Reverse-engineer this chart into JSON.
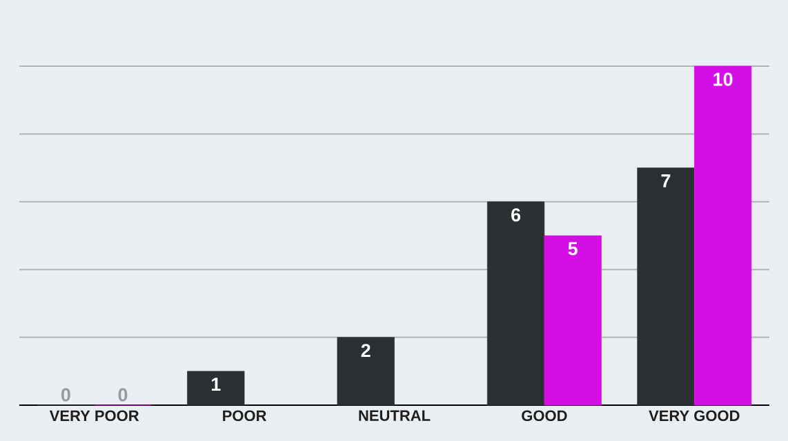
{
  "chart_data": {
    "type": "bar",
    "categories": [
      "VERY POOR",
      "POOR",
      "NEUTRAL",
      "GOOD",
      "VERY GOOD"
    ],
    "series": [
      {
        "color": "#2b3033",
        "values": [
          0,
          1,
          2,
          6,
          7
        ]
      },
      {
        "color": "#d30fe6",
        "values": [
          0,
          null,
          null,
          5,
          10
        ]
      }
    ],
    "ylim": [
      0,
      10
    ],
    "yticks": [
      {
        "value": 2,
        "label": null
      },
      {
        "value": 4,
        "label": null
      },
      {
        "value": 6,
        "label": null
      },
      {
        "value": 8,
        "label": null
      },
      {
        "value": 10,
        "label": null
      }
    ],
    "grid": "y",
    "tick_labels": "x",
    "data_labels": true
  }
}
